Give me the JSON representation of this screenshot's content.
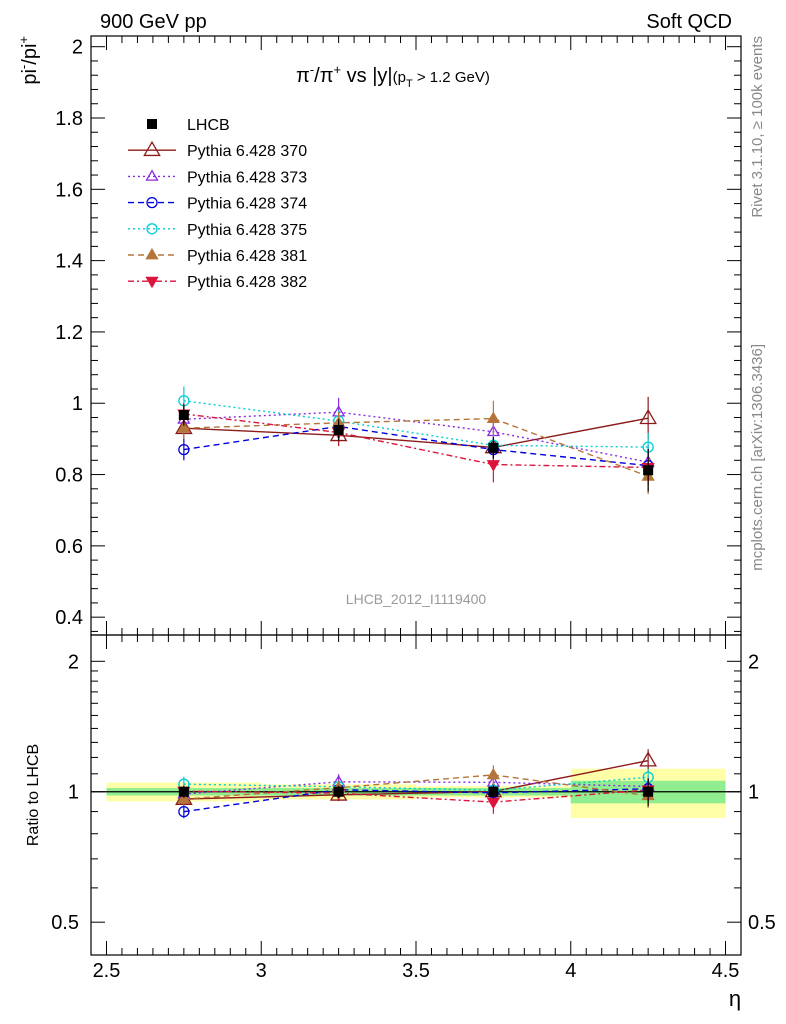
{
  "header": {
    "left": "900 GeV pp",
    "right": "Soft QCD"
  },
  "side_labels": {
    "rivet": "Rivet 3.1.10, ≥ 100k events",
    "mcplots": "mcplots.cern.ch [arXiv:1306.3436]"
  },
  "chart_data": {
    "type": "scatter",
    "title_parts": {
      "pi_base": "π",
      "minus": "-",
      "slash": "/π",
      "plus": "+",
      "vs": " vs |y|",
      "cut_open": "(p",
      "cut_sub": "T",
      "cut_close": " > 1.2 GeV)"
    },
    "ylabel_parts": {
      "base1": "pi",
      "sup1": "-",
      "base2": "/pi",
      "sup2": "+"
    },
    "ratio_ylabel": "Ratio to LHCB",
    "xlabel": "η",
    "watermark": "LHCB_2012_I1119400",
    "xlim": [
      2.45,
      4.55
    ],
    "ylim": [
      0.35,
      2.03
    ],
    "ratio_ylim": [
      0.42,
      2.3
    ],
    "ratio_log_scale": true,
    "x_ticks": [
      "2.5",
      "3",
      "3.5",
      "4",
      "4.5"
    ],
    "y_ticks": [
      "0.4",
      "0.6",
      "0.8",
      "1",
      "1.2",
      "1.4",
      "1.6",
      "1.8",
      "2"
    ],
    "ratio_ticks": [
      "0.5",
      "1",
      "2"
    ],
    "x": [
      2.75,
      3.25,
      3.75,
      4.25
    ],
    "data": {
      "name": "LHCB",
      "values": [
        0.967,
        0.925,
        0.875,
        0.812
      ],
      "errors": [
        0.03,
        0.03,
        0.03,
        0.06
      ],
      "band_rel_inner": [
        0.02,
        0.02,
        0.02,
        0.06
      ],
      "band_rel_outer": [
        0.05,
        0.04,
        0.03,
        0.13
      ]
    },
    "series": [
      {
        "name": "Pythia 6.428 370",
        "color": "#8b1a1a",
        "dash": "",
        "marker": "tri-up-open",
        "values": [
          0.93,
          0.91,
          0.876,
          0.958
        ],
        "errors": [
          0.03,
          0.03,
          0.03,
          0.06
        ]
      },
      {
        "name": "Pythia 6.428 373",
        "color": "#8a2be2",
        "dash": "2,3",
        "marker": "tri-up-open",
        "values": [
          0.955,
          0.975,
          0.92,
          0.835
        ],
        "errors": [
          0.03,
          0.04,
          0.03,
          0.05
        ]
      },
      {
        "name": "Pythia 6.428 374",
        "color": "#0000dd",
        "dash": "6,4",
        "marker": "circle-open",
        "values": [
          0.87,
          0.935,
          0.87,
          0.825
        ],
        "errors": [
          0.03,
          0.03,
          0.03,
          0.04
        ]
      },
      {
        "name": "Pythia 6.428 375",
        "color": "#00ced1",
        "dash": "2,3",
        "marker": "circle-open",
        "values": [
          1.007,
          0.95,
          0.882,
          0.877
        ],
        "errors": [
          0.04,
          0.03,
          0.03,
          0.04
        ]
      },
      {
        "name": "Pythia 6.428 381",
        "color": "#b5753a",
        "dash": "6,4",
        "marker": "tri-up-filled",
        "values": [
          0.93,
          0.945,
          0.957,
          0.795
        ],
        "errors": [
          0.03,
          0.03,
          0.05,
          0.05
        ]
      },
      {
        "name": "Pythia 6.428 382",
        "color": "#dc143c",
        "dash": "6,3,2,3",
        "marker": "tri-down-filled",
        "values": [
          0.97,
          0.918,
          0.828,
          0.82
        ],
        "errors": [
          0.03,
          0.03,
          0.05,
          0.05
        ]
      }
    ]
  }
}
